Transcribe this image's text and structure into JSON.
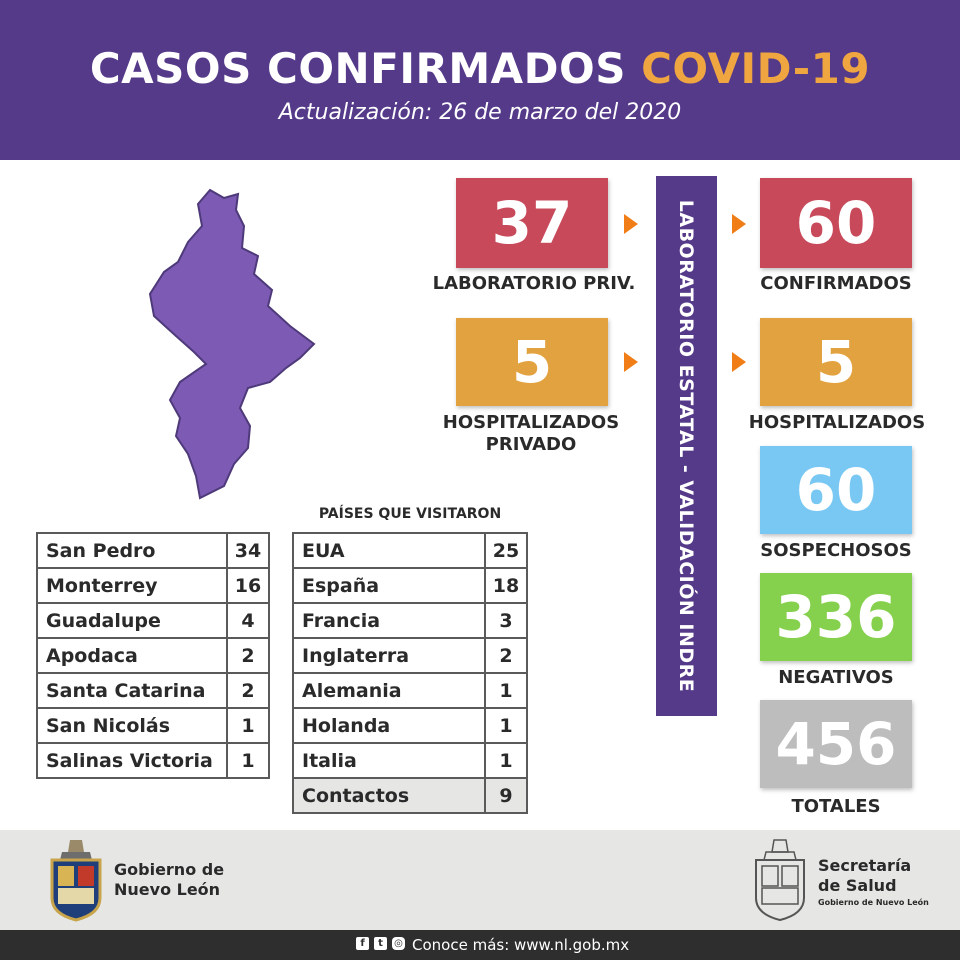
{
  "header": {
    "title_main": "CASOS CONFIRMADOS",
    "title_accent": "COVID-19",
    "subtitle": "Actualización: 26 de marzo del 2020"
  },
  "stats": {
    "lab_priv": {
      "value": "37",
      "label": "LABORATORIO PRIV."
    },
    "confirmados": {
      "value": "60",
      "label": "CONFIRMADOS"
    },
    "hosp_priv": {
      "value": "5",
      "label_line1": "HOSPITALIZADOS",
      "label_line2": "PRIVADO"
    },
    "hospitalizados": {
      "value": "5",
      "label": "HOSPITALIZADOS"
    },
    "sospechosos": {
      "value": "60",
      "label": "SOSPECHOSOS"
    },
    "negativos": {
      "value": "336",
      "label": "NEGATIVOS"
    },
    "totales": {
      "value": "456",
      "label": "TOTALES"
    }
  },
  "validation_bar": "LABORATORIO ESTATAL - VALIDACIÓN INDRE",
  "municipios": [
    {
      "name": "San Pedro",
      "count": "34"
    },
    {
      "name": "Monterrey",
      "count": "16"
    },
    {
      "name": "Guadalupe",
      "count": "4"
    },
    {
      "name": "Apodaca",
      "count": "2"
    },
    {
      "name": "Santa Catarina",
      "count": "2"
    },
    {
      "name": "San Nicolás",
      "count": "1"
    },
    {
      "name": "Salinas Victoria",
      "count": "1"
    }
  ],
  "paises": {
    "heading": "PAÍSES QUE VISITARON",
    "rows": [
      {
        "name": "EUA",
        "count": "25"
      },
      {
        "name": "España",
        "count": "18"
      },
      {
        "name": "Francia",
        "count": "3"
      },
      {
        "name": "Inglaterra",
        "count": "2"
      },
      {
        "name": "Alemania",
        "count": "1"
      },
      {
        "name": "Holanda",
        "count": "1"
      },
      {
        "name": "Italia",
        "count": "1"
      },
      {
        "name": "Contactos",
        "count": "9"
      }
    ]
  },
  "footer": {
    "left_org_line1": "Gobierno de",
    "left_org_line2": "Nuevo León",
    "right_org_line1": "Secretaría",
    "right_org_line2": "de Salud",
    "right_org_line3": "Gobierno de Nuevo León",
    "link_text": "Conoce más: www.nl.gob.mx"
  },
  "icons": [
    "facebook-icon",
    "twitter-icon",
    "instagram-icon",
    "nuevo-leon-crest-icon",
    "salud-crest-icon",
    "nuevo-leon-map-icon"
  ],
  "colors": {
    "header_purple": "#553a8a",
    "accent_orange": "#f0a640",
    "red": "#c8495a",
    "orange": "#e3a240",
    "blue": "#79c8f3",
    "green": "#85d04c",
    "gray": "#bdbdbd",
    "map_purple": "#7d5ab3"
  }
}
